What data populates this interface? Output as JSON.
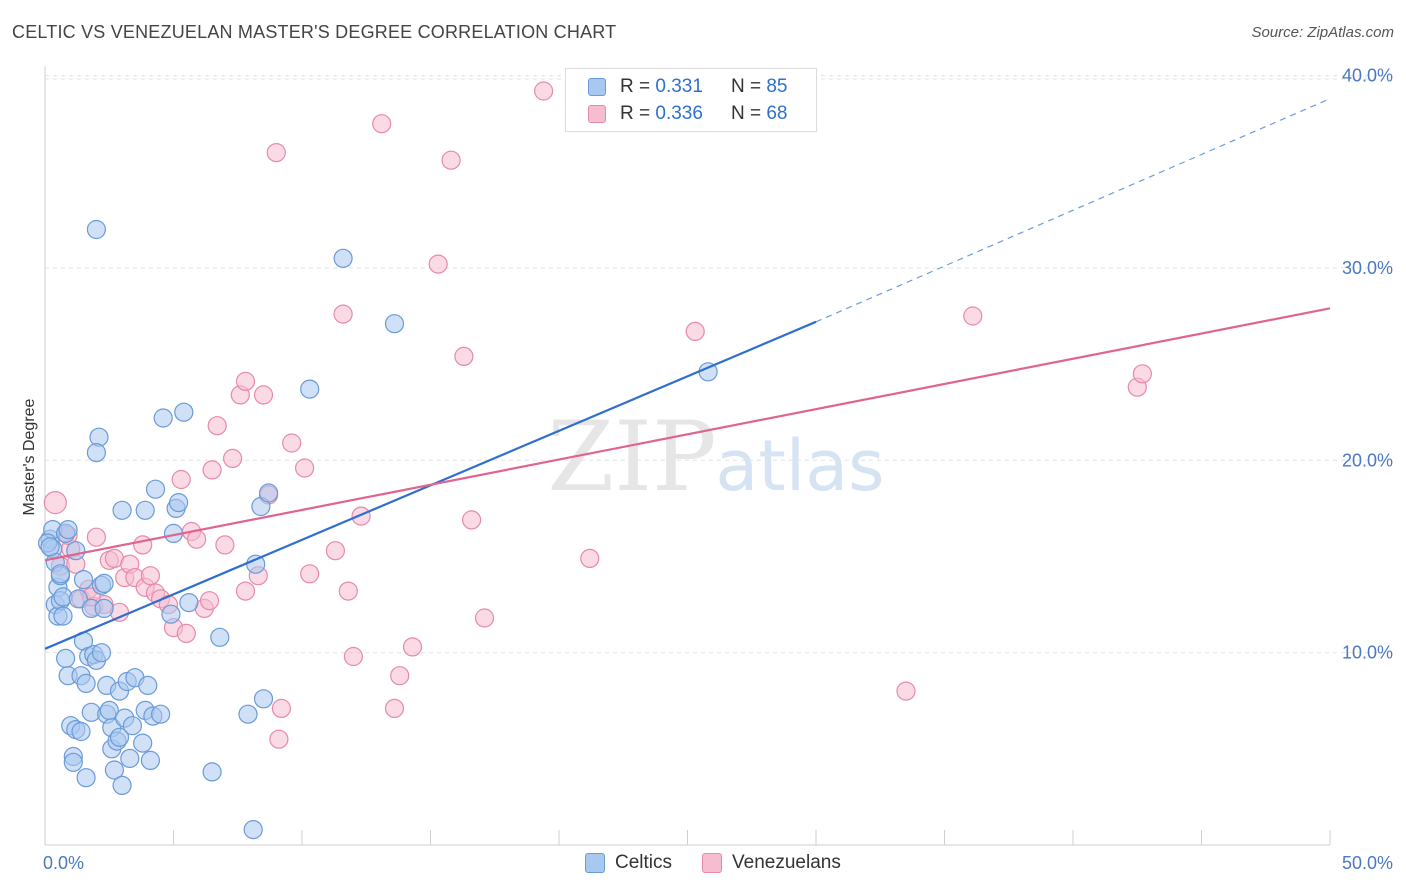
{
  "title": "CELTIC VS VENEZUELAN MASTER'S DEGREE CORRELATION CHART",
  "source": "Source: ZipAtlas.com",
  "watermark": {
    "zip": "ZIP",
    "atlas": "atlas"
  },
  "legend_top": [
    {
      "r_label": "R =",
      "r_value": "0.331",
      "n_label": "N =",
      "n_value": "85"
    },
    {
      "r_label": "R =",
      "r_value": "0.336",
      "n_label": "N =",
      "n_value": "68"
    }
  ],
  "colors": {
    "celtics_fill": "#a9c8f0",
    "celtics_stroke": "#6a9ad8",
    "celtics_line": "#2f6fcf",
    "venez_fill": "#f6bcd0",
    "venez_stroke": "#e889a9",
    "venez_line": "#e0648f",
    "grid": "#e3e3e3",
    "tick_text": "#4a78c2"
  },
  "chart_data": {
    "type": "scatter",
    "title": "CELTIC VS VENEZUELAN MASTER'S DEGREE CORRELATION CHART",
    "xlabel": "",
    "ylabel": "Master's Degree",
    "xlim": [
      0,
      50
    ],
    "ylim": [
      0,
      40.5
    ],
    "x_tick_labels": [
      "0.0%",
      "50.0%"
    ],
    "y_ticks": [
      10,
      20,
      30,
      40
    ],
    "y_tick_labels": [
      "10.0%",
      "20.0%",
      "30.0%",
      "40.0%"
    ],
    "grid": true,
    "legend": [
      "Celtics",
      "Venezuelans"
    ],
    "series": [
      {
        "name": "Celtics",
        "r": 0.331,
        "n": 85,
        "trend": {
          "x0": 0,
          "y0": 10.2,
          "x1": 30,
          "y1": 27.2,
          "dashed_to_x": 50,
          "dashed_to_y": 38.8
        },
        "points": [
          [
            0.2,
            15.9
          ],
          [
            0.3,
            15.4
          ],
          [
            0.3,
            16.4
          ],
          [
            0.4,
            14.7
          ],
          [
            0.4,
            12.5
          ],
          [
            0.5,
            13.4
          ],
          [
            0.5,
            11.9
          ],
          [
            0.6,
            12.7
          ],
          [
            0.6,
            14.0
          ],
          [
            0.7,
            12.9
          ],
          [
            0.7,
            11.9
          ],
          [
            0.8,
            16.2
          ],
          [
            0.8,
            9.7
          ],
          [
            0.9,
            16.4
          ],
          [
            0.9,
            8.8
          ],
          [
            1.0,
            6.2
          ],
          [
            1.1,
            4.6
          ],
          [
            1.1,
            4.3
          ],
          [
            1.2,
            6.0
          ],
          [
            1.2,
            15.3
          ],
          [
            1.3,
            12.8
          ],
          [
            1.4,
            8.8
          ],
          [
            1.4,
            5.9
          ],
          [
            1.5,
            10.6
          ],
          [
            1.6,
            8.4
          ],
          [
            1.6,
            3.5
          ],
          [
            1.7,
            9.8
          ],
          [
            1.8,
            6.9
          ],
          [
            1.8,
            12.3
          ],
          [
            1.9,
            9.9
          ],
          [
            2.0,
            9.6
          ],
          [
            2.1,
            21.2
          ],
          [
            2.0,
            20.4
          ],
          [
            2.2,
            13.5
          ],
          [
            2.2,
            10.0
          ],
          [
            2.3,
            12.3
          ],
          [
            2.4,
            6.8
          ],
          [
            2.4,
            8.3
          ],
          [
            2.5,
            7.0
          ],
          [
            2.6,
            5.0
          ],
          [
            2.6,
            6.1
          ],
          [
            2.7,
            3.9
          ],
          [
            2.8,
            5.4
          ],
          [
            2.9,
            5.6
          ],
          [
            2.9,
            8.0
          ],
          [
            3.0,
            3.1
          ],
          [
            3.0,
            17.4
          ],
          [
            3.1,
            6.6
          ],
          [
            3.2,
            8.5
          ],
          [
            3.3,
            4.5
          ],
          [
            3.5,
            8.7
          ],
          [
            3.8,
            5.3
          ],
          [
            3.9,
            17.4
          ],
          [
            3.9,
            7.0
          ],
          [
            4.0,
            8.3
          ],
          [
            4.1,
            4.4
          ],
          [
            4.2,
            6.7
          ],
          [
            4.3,
            18.5
          ],
          [
            4.6,
            22.2
          ],
          [
            4.9,
            12.0
          ],
          [
            5.0,
            16.2
          ],
          [
            5.1,
            17.5
          ],
          [
            5.2,
            17.8
          ],
          [
            5.4,
            22.5
          ],
          [
            5.6,
            12.6
          ],
          [
            6.5,
            3.8
          ],
          [
            6.8,
            10.8
          ],
          [
            7.9,
            6.8
          ],
          [
            8.1,
            0.8
          ],
          [
            8.2,
            14.6
          ],
          [
            8.4,
            17.6
          ],
          [
            8.5,
            7.6
          ],
          [
            8.7,
            18.3
          ],
          [
            10.3,
            23.7
          ],
          [
            11.6,
            30.5
          ],
          [
            13.6,
            27.1
          ],
          [
            25.8,
            24.6
          ],
          [
            2.0,
            32.0
          ],
          [
            0.1,
            15.7
          ],
          [
            0.2,
            15.5
          ],
          [
            0.6,
            14.1
          ],
          [
            1.5,
            13.8
          ],
          [
            2.3,
            13.6
          ],
          [
            3.4,
            6.2
          ],
          [
            4.5,
            6.8
          ]
        ]
      },
      {
        "name": "Venezuelans",
        "r": 0.336,
        "n": 68,
        "trend": {
          "x0": 0,
          "y0": 14.8,
          "x1": 50,
          "y1": 27.9
        },
        "points": [
          [
            0.4,
            17.8
          ],
          [
            0.6,
            14.5
          ],
          [
            0.8,
            16.2
          ],
          [
            1.0,
            15.4
          ],
          [
            1.2,
            14.6
          ],
          [
            1.4,
            12.8
          ],
          [
            1.7,
            13.3
          ],
          [
            1.9,
            12.4
          ],
          [
            2.0,
            16.0
          ],
          [
            2.3,
            12.5
          ],
          [
            2.5,
            14.8
          ],
          [
            2.7,
            14.9
          ],
          [
            2.9,
            12.1
          ],
          [
            3.1,
            13.9
          ],
          [
            3.3,
            14.6
          ],
          [
            3.5,
            13.9
          ],
          [
            3.8,
            15.6
          ],
          [
            3.9,
            13.4
          ],
          [
            4.1,
            14.0
          ],
          [
            4.3,
            13.1
          ],
          [
            4.5,
            12.8
          ],
          [
            4.8,
            12.5
          ],
          [
            5.0,
            11.3
          ],
          [
            5.3,
            19.0
          ],
          [
            5.5,
            11.0
          ],
          [
            5.7,
            16.3
          ],
          [
            5.9,
            15.9
          ],
          [
            6.2,
            12.3
          ],
          [
            6.4,
            12.7
          ],
          [
            6.5,
            19.5
          ],
          [
            6.7,
            21.8
          ],
          [
            7.0,
            15.6
          ],
          [
            7.3,
            20.1
          ],
          [
            7.6,
            23.4
          ],
          [
            7.8,
            24.1
          ],
          [
            7.8,
            13.2
          ],
          [
            8.3,
            14.0
          ],
          [
            8.5,
            23.4
          ],
          [
            8.7,
            18.2
          ],
          [
            9.0,
            36.0
          ],
          [
            9.1,
            5.5
          ],
          [
            9.2,
            7.1
          ],
          [
            9.6,
            20.9
          ],
          [
            10.1,
            19.6
          ],
          [
            10.3,
            14.1
          ],
          [
            11.3,
            15.3
          ],
          [
            11.6,
            27.6
          ],
          [
            11.8,
            13.2
          ],
          [
            12.0,
            9.8
          ],
          [
            12.3,
            17.1
          ],
          [
            13.1,
            37.5
          ],
          [
            13.6,
            7.1
          ],
          [
            13.8,
            8.8
          ],
          [
            14.3,
            10.3
          ],
          [
            15.3,
            30.2
          ],
          [
            15.8,
            35.6
          ],
          [
            16.3,
            25.4
          ],
          [
            16.6,
            16.9
          ],
          [
            17.1,
            11.8
          ],
          [
            19.4,
            39.2
          ],
          [
            21.2,
            14.9
          ],
          [
            25.3,
            26.7
          ],
          [
            33.5,
            8.0
          ],
          [
            36.1,
            27.5
          ],
          [
            42.5,
            23.8
          ],
          [
            42.7,
            24.5
          ],
          [
            0.9,
            16.1
          ],
          [
            1.8,
            12.9
          ]
        ]
      }
    ]
  }
}
